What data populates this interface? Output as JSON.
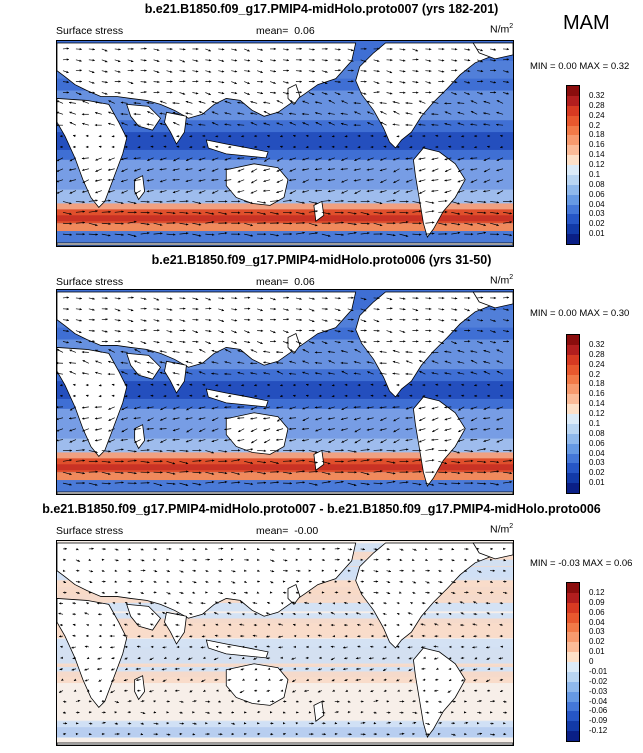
{
  "season": "MAM",
  "panels": [
    {
      "title": "b.e21.B1850.f09_g17.PMIP4-midHolo.proto007 (yrs 182-201)",
      "left_label": "Surface stress",
      "mean_label": "mean=",
      "mean_value": "0.06",
      "units": "N/m",
      "units_sup": "2",
      "min_label": "MIN =",
      "min_value": "0.00",
      "max_label": "MAX =",
      "max_value": "0.32",
      "colorbar": {
        "labels": [
          "0.32",
          "0.28",
          "0.24",
          "0.2",
          "0.18",
          "0.16",
          "0.14",
          "0.12",
          "0.1",
          "0.08",
          "0.06",
          "0.04",
          "0.03",
          "0.02",
          "0.01"
        ],
        "colors": [
          "#8b0d0d",
          "#b21e1e",
          "#d73a22",
          "#e8582e",
          "#f27a48",
          "#f79a6e",
          "#fbbb98",
          "#fde0c8",
          "#dcebf8",
          "#b9d5f2",
          "#8fb8eb",
          "#6699e3",
          "#4477d8",
          "#2656c6",
          "#123aa8",
          "#0a1f86"
        ]
      },
      "colormap": "sequential"
    },
    {
      "title": "b.e21.B1850.f09_g17.PMIP4-midHolo.proto006 (yrs 31-50)",
      "left_label": "Surface stress",
      "mean_label": "mean=",
      "mean_value": "0.06",
      "units": "N/m",
      "units_sup": "2",
      "min_label": "MIN =",
      "min_value": "0.00",
      "max_label": "MAX =",
      "max_value": "0.30",
      "colorbar": {
        "labels": [
          "0.32",
          "0.28",
          "0.24",
          "0.2",
          "0.18",
          "0.16",
          "0.14",
          "0.12",
          "0.1",
          "0.08",
          "0.06",
          "0.04",
          "0.03",
          "0.02",
          "0.01"
        ],
        "colors": [
          "#8b0d0d",
          "#b21e1e",
          "#d73a22",
          "#e8582e",
          "#f27a48",
          "#f79a6e",
          "#fbbb98",
          "#fde0c8",
          "#dcebf8",
          "#b9d5f2",
          "#8fb8eb",
          "#6699e3",
          "#4477d8",
          "#2656c6",
          "#123aa8",
          "#0a1f86"
        ]
      },
      "colormap": "sequential"
    },
    {
      "title": "b.e21.B1850.f09_g17.PMIP4-midHolo.proto007 - b.e21.B1850.f09_g17.PMIP4-midHolo.proto006",
      "left_label": "Surface stress",
      "mean_label": "mean=",
      "mean_value": "-0.00",
      "units": "N/m",
      "units_sup": "2",
      "min_label": "MIN =",
      "min_value": "-0.03",
      "max_label": "MAX =",
      "max_value": "0.06",
      "colorbar": {
        "labels": [
          "0.12",
          "0.09",
          "0.06",
          "0.04",
          "0.03",
          "0.02",
          "0.01",
          "0",
          "-0.01",
          "-0.02",
          "-0.03",
          "-0.04",
          "-0.06",
          "-0.09",
          "-0.12"
        ],
        "colors": [
          "#8b0d0d",
          "#b21e1e",
          "#d73a22",
          "#e8582e",
          "#f27a48",
          "#f79a6e",
          "#fbbb98",
          "#fde0c8",
          "#dcebf8",
          "#b9d5f2",
          "#8fb8eb",
          "#6699e3",
          "#4477d8",
          "#2656c6",
          "#123aa8",
          "#0a1f86"
        ]
      },
      "colormap": "diverging"
    }
  ],
  "colors": {
    "land": "#ffffff",
    "coastline": "#000000",
    "arrows": "#000000"
  }
}
